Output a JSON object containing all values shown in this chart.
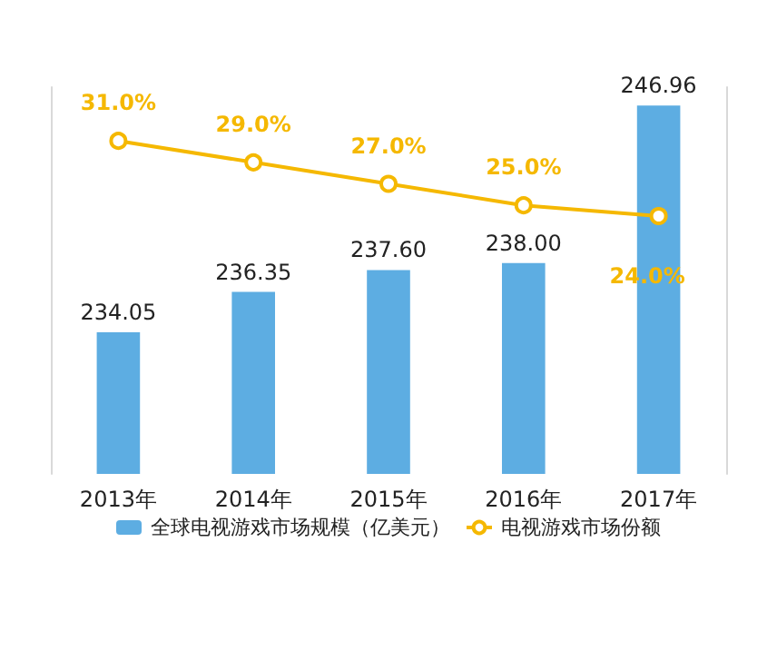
{
  "chart_data": {
    "type": "bar",
    "categories": [
      "2013年",
      "2014年",
      "2015年",
      "2016年",
      "2017年"
    ],
    "series": [
      {
        "name": "全球电视游戏市场规模（亿美元）",
        "color": "#5dade2",
        "values": [
          234.05,
          236.35,
          237.6,
          238.0,
          246.96
        ],
        "value_labels": [
          "234.05",
          "236.35",
          "237.60",
          "238.00",
          "246.96"
        ]
      },
      {
        "name": "电视游戏市场份额",
        "type": "line",
        "axis": "y2",
        "color": "#f5b800",
        "values": [
          31.0,
          29.0,
          27.0,
          25.0,
          24.0
        ],
        "value_labels": [
          "31.0%",
          "29.0%",
          "27.0%",
          "25.0%",
          "24.0%"
        ],
        "marker": "circle"
      }
    ],
    "ylim": [
      226,
      248
    ],
    "y2lim": [
      0,
      36
    ],
    "tick_labels": "x",
    "legend": "bottom"
  }
}
